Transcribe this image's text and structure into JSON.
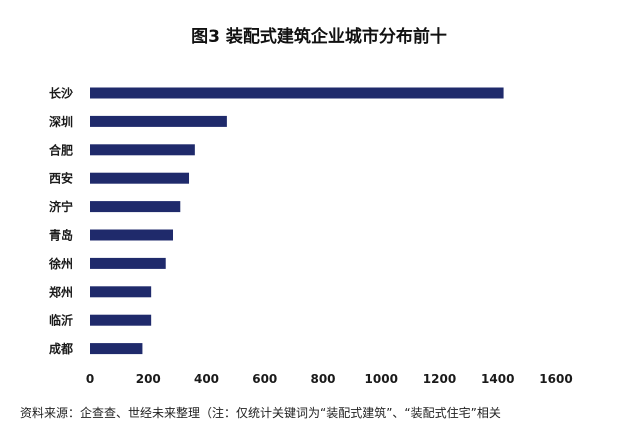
{
  "chart_data": {
    "type": "bar",
    "orientation": "horizontal",
    "title": "图3 装配式建筑企业城市分布前十",
    "categories": [
      "长沙",
      "深圳",
      "合肥",
      "西安",
      "济宁",
      "青岛",
      "徐州",
      "郑州",
      "临沂",
      "成都"
    ],
    "values": [
      1420,
      470,
      360,
      340,
      310,
      285,
      260,
      210,
      210,
      180
    ],
    "xlabel": "",
    "ylabel": "",
    "xlim": [
      0,
      1600
    ],
    "xticks": [
      "0",
      "200",
      "400",
      "600",
      "800",
      "1000",
      "1200",
      "1400",
      "1600"
    ],
    "grid": false,
    "legend": "none",
    "bar_color": "#1f2a6b"
  },
  "footer": {
    "source": "资料来源：企查查、世经未来整理（注：仅统计关键词为“装配式建筑”、“装配式住宅”相关"
  }
}
